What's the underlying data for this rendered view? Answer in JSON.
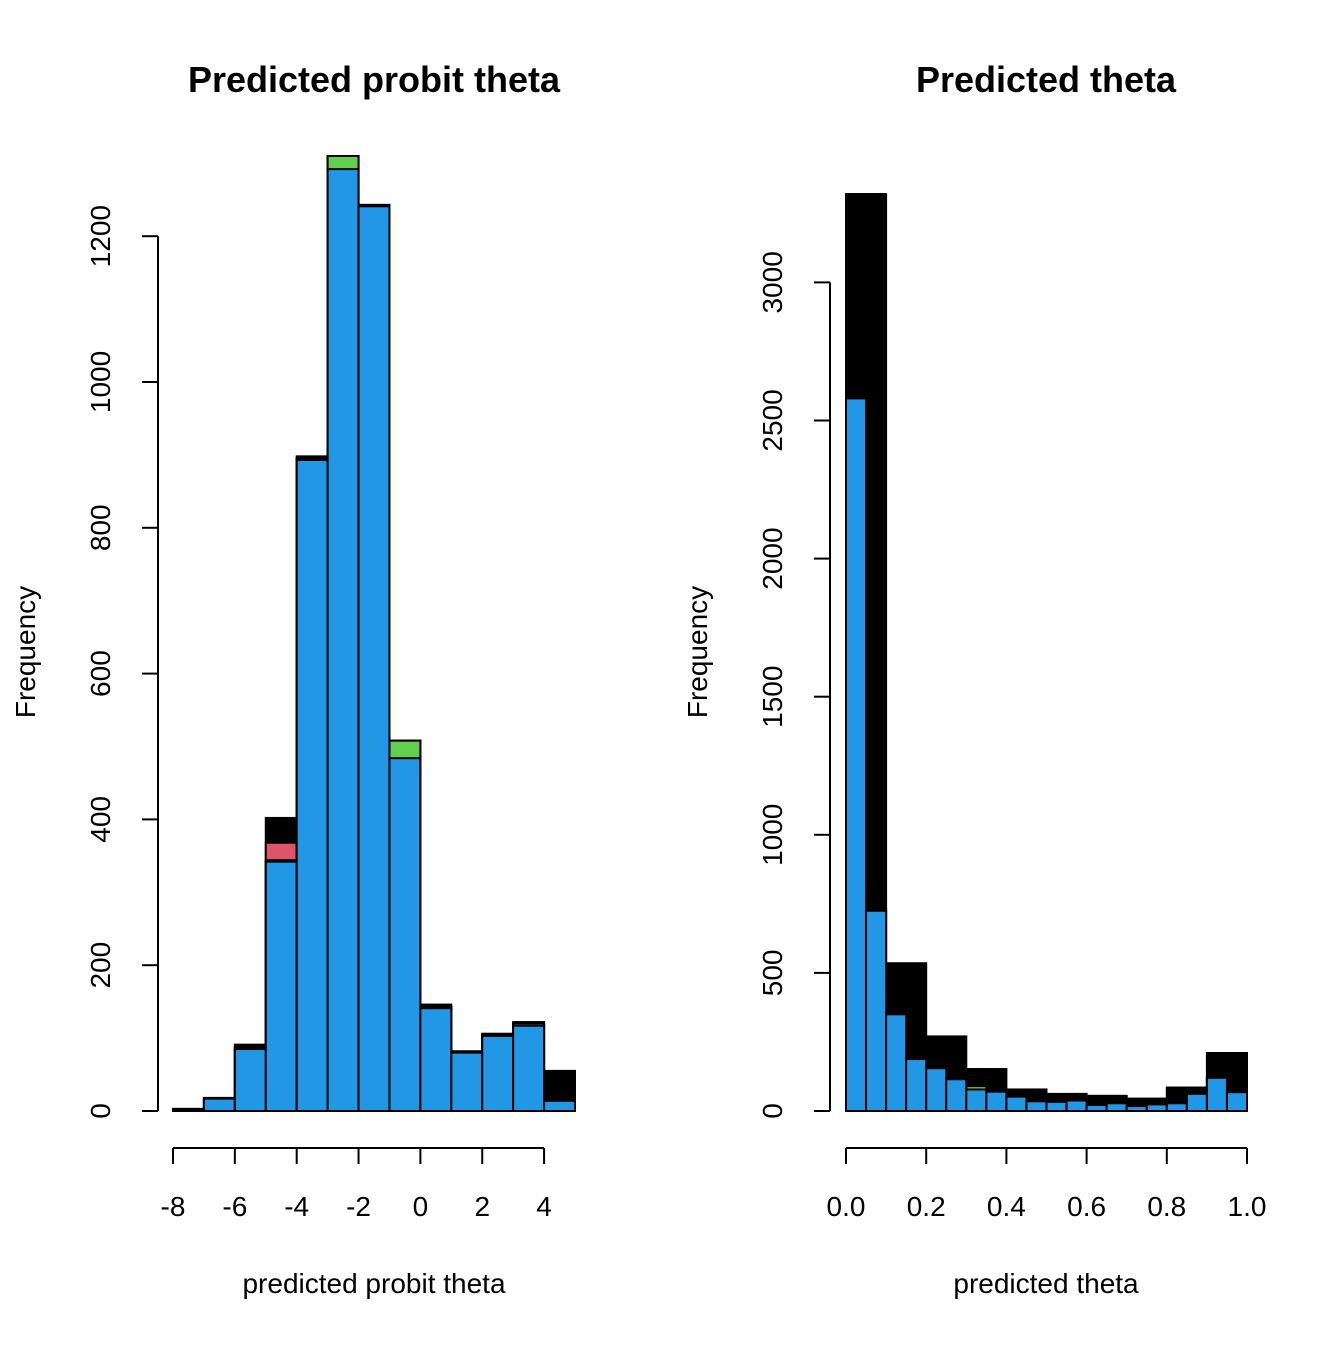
{
  "chart_data": [
    {
      "type": "bar",
      "title": "Predicted probit theta",
      "xlabel": "predicted probit theta",
      "ylabel": "Frequency",
      "bin_edges": [
        -8,
        -7,
        -6,
        -5,
        -4,
        -3,
        -2,
        -1,
        0,
        1,
        2,
        3,
        4,
        5
      ],
      "xlim": [
        -8,
        5
      ],
      "ylim": [
        0,
        1310
      ],
      "xticks": [
        -8,
        -6,
        -4,
        -2,
        0,
        2,
        4
      ],
      "xtick_labels": [
        "-8",
        "-6",
        "-4",
        "-2",
        "0",
        "2",
        "4"
      ],
      "yticks": [
        0,
        200,
        400,
        600,
        800,
        1000,
        1200
      ],
      "ytick_labels": [
        "0",
        "200",
        "400",
        "600",
        "800",
        "1000",
        "1200"
      ],
      "stacked": false,
      "series": [
        {
          "color": "#000000",
          "values": [
            3,
            18,
            91,
            402,
            898,
            1310,
            1243,
            508,
            146,
            82,
            106,
            122,
            55
          ]
        },
        {
          "color": "#DF536B",
          "values": [
            2,
            17,
            87,
            368,
            895,
            1310,
            1241,
            508,
            143,
            81,
            105,
            120,
            15
          ]
        },
        {
          "color": "#61D04F",
          "values": [
            2,
            17,
            87,
            344,
            895,
            1310,
            1241,
            508,
            143,
            81,
            105,
            120,
            15
          ]
        },
        {
          "color": "#2297E6",
          "values": [
            2,
            17,
            85,
            342,
            893,
            1292,
            1241,
            484,
            141,
            80,
            103,
            117,
            14
          ]
        }
      ]
    },
    {
      "type": "bar",
      "title": "Predicted theta",
      "xlabel": "predicted theta",
      "ylabel": "Frequency",
      "bin_edges": [
        0,
        0.1,
        0.2,
        0.3,
        0.4,
        0.5,
        0.6,
        0.7,
        0.8,
        0.9,
        1.0
      ],
      "fine_bin_edges": [
        0,
        0.05,
        0.1,
        0.15,
        0.2,
        0.25,
        0.3,
        0.35,
        0.4,
        0.45,
        0.5,
        0.55,
        0.6,
        0.65,
        0.7,
        0.75,
        0.8,
        0.85,
        0.9,
        0.95,
        1.0
      ],
      "xlim": [
        0,
        1
      ],
      "ylim": [
        0,
        3320
      ],
      "xticks": [
        0,
        0.2,
        0.4,
        0.6,
        0.8,
        1.0
      ],
      "xtick_labels": [
        "0.0",
        "0.2",
        "0.4",
        "0.6",
        "0.8",
        "1.0"
      ],
      "yticks": [
        0,
        500,
        1000,
        1500,
        2000,
        2500,
        3000
      ],
      "ytick_labels": [
        "0",
        "500",
        "1000",
        "1500",
        "2000",
        "2500",
        "3000"
      ],
      "series": [
        {
          "color": "#000000",
          "binning": "coarse",
          "values": [
            3320,
            535,
            270,
            152,
            78,
            62,
            55,
            45,
            85,
            210
          ]
        },
        {
          "color": "#61D04F",
          "binning": "fine",
          "values": [
            2585,
            730,
            352,
            190,
            157,
            118,
            90,
            72,
            55,
            40,
            35,
            40,
            25,
            30,
            20,
            25,
            30,
            65,
            122,
            70
          ]
        },
        {
          "color": "#2297E6",
          "binning": "fine",
          "values": [
            2580,
            725,
            350,
            188,
            155,
            115,
            78,
            70,
            52,
            35,
            33,
            38,
            22,
            28,
            18,
            24,
            28,
            62,
            120,
            68
          ]
        }
      ]
    }
  ]
}
